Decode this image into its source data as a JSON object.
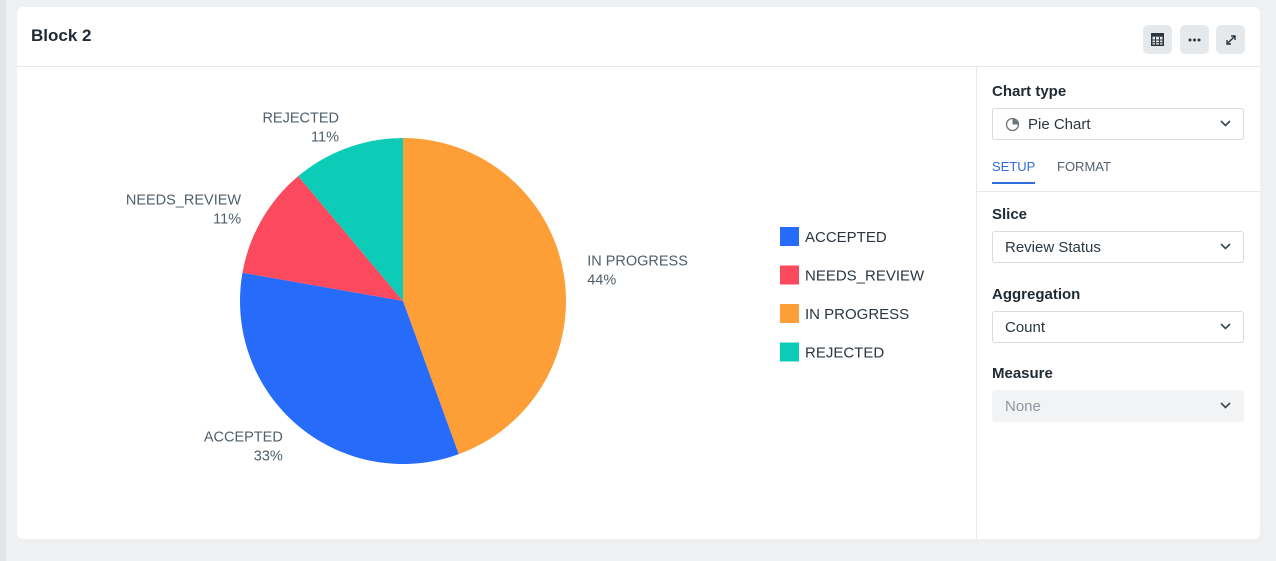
{
  "block": {
    "title": "Block 2"
  },
  "header_buttons": [
    {
      "icon": "table-icon"
    },
    {
      "icon": "more-icon"
    },
    {
      "icon": "expand-icon"
    }
  ],
  "chart_data": {
    "type": "pie",
    "slices": [
      {
        "label": "IN PROGRESS",
        "value": 44,
        "pct_label": "44%",
        "color": "#fd9f36"
      },
      {
        "label": "ACCEPTED",
        "value": 33,
        "pct_label": "33%",
        "color": "#276bfb"
      },
      {
        "label": "NEEDS_REVIEW",
        "value": 11,
        "pct_label": "11%",
        "color": "#fb4a5d"
      },
      {
        "label": "REJECTED",
        "value": 11,
        "pct_label": "11%",
        "color": "#0ccbb7"
      }
    ],
    "legend": [
      {
        "label": "ACCEPTED",
        "color": "#276bfb"
      },
      {
        "label": "NEEDS_REVIEW",
        "color": "#fb4a5d"
      },
      {
        "label": "IN PROGRESS",
        "color": "#fd9f36"
      },
      {
        "label": "REJECTED",
        "color": "#0ccbb7"
      }
    ],
    "legend_position": "right"
  },
  "panel": {
    "chart_type_label": "Chart type",
    "chart_type_value": "Pie Chart",
    "tabs": [
      {
        "label": "SETUP",
        "active": true
      },
      {
        "label": "FORMAT",
        "active": false
      }
    ],
    "slice_label": "Slice",
    "slice_value": "Review Status",
    "aggregation_label": "Aggregation",
    "aggregation_value": "Count",
    "measure_label": "Measure",
    "measure_value": "None"
  },
  "colors": {
    "accent": "#2f6ddc"
  }
}
